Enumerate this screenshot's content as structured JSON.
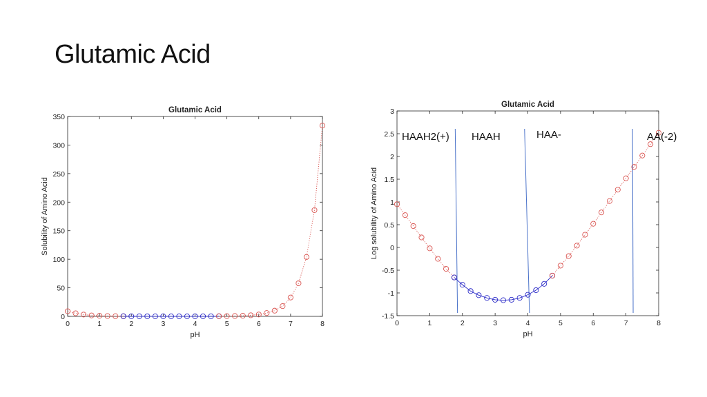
{
  "slide": {
    "title": "Glutamic Acid"
  },
  "colors": {
    "acid_side": "#d9534f",
    "buffer_region": "#2b2bc8",
    "species_line": "#4a72c9"
  },
  "chart_data": [
    {
      "type": "scatter",
      "title": "Glutamic Acid",
      "xlabel": "pH",
      "ylabel": "Solubility of Amino Acid",
      "xlim": [
        0,
        8
      ],
      "ylim": [
        0,
        350
      ],
      "xticks": [
        "0",
        "1",
        "2",
        "3",
        "4",
        "5",
        "6",
        "7",
        "8"
      ],
      "yticks": [
        "0",
        "50",
        "100",
        "150",
        "200",
        "250",
        "300",
        "350"
      ],
      "grid": false,
      "series": [
        {
          "color": "#d9534f",
          "line_style": "dotted",
          "x": [
            0,
            0.25,
            0.5,
            0.75,
            1,
            1.25,
            1.5,
            1.75
          ],
          "y": [
            9,
            5.4,
            3.1,
            1.6,
            1.0,
            0.6,
            0.35,
            0.2
          ]
        },
        {
          "color": "#2b2bc8",
          "line_style": "solid",
          "x": [
            1.75,
            2,
            2.25,
            2.5,
            2.75,
            3,
            3.25,
            3.5,
            3.75,
            4,
            4.25,
            4.5,
            4.75
          ],
          "y": [
            0.22,
            0.15,
            0.11,
            0.09,
            0.08,
            0.07,
            0.07,
            0.07,
            0.08,
            0.09,
            0.12,
            0.16,
            0.24
          ]
        },
        {
          "color": "#d9534f",
          "line_style": "dotted",
          "x": [
            4.75,
            5,
            5.25,
            5.5,
            5.75,
            6,
            6.25,
            6.5,
            6.75,
            7,
            7.25,
            7.5,
            7.75,
            8
          ],
          "y": [
            0.24,
            0.4,
            0.65,
            1.1,
            1.9,
            3.3,
            5.8,
            10,
            18,
            33,
            58,
            104,
            186,
            334
          ]
        }
      ]
    },
    {
      "type": "scatter",
      "title": "Glutamic Acid",
      "xlabel": "pH",
      "ylabel": "Log solubility of Amino Acid",
      "xlim": [
        0,
        8
      ],
      "ylim": [
        -1.5,
        3
      ],
      "xticks": [
        "0",
        "1",
        "2",
        "3",
        "4",
        "5",
        "6",
        "7",
        "8"
      ],
      "yticks": [
        "-1.5",
        "-1",
        "-0.5",
        "0",
        "0.5",
        "1",
        "1.5",
        "2",
        "2.5",
        "3"
      ],
      "grid": false,
      "series": [
        {
          "color": "#d9534f",
          "line_style": "dotted",
          "x": [
            0,
            0.25,
            0.5,
            0.75,
            1,
            1.25,
            1.5,
            1.75
          ],
          "y": [
            0.95,
            0.71,
            0.47,
            0.22,
            -0.02,
            -0.25,
            -0.47,
            -0.66
          ]
        },
        {
          "color": "#2b2bc8",
          "line_style": "solid",
          "x": [
            1.75,
            2,
            2.25,
            2.5,
            2.75,
            3,
            3.25,
            3.5,
            3.75,
            4,
            4.25,
            4.5,
            4.75
          ],
          "y": [
            -0.66,
            -0.82,
            -0.96,
            -1.05,
            -1.11,
            -1.15,
            -1.16,
            -1.15,
            -1.11,
            -1.04,
            -0.94,
            -0.8,
            -0.62
          ]
        },
        {
          "color": "#d9534f",
          "line_style": "dotted",
          "x": [
            4.75,
            5,
            5.25,
            5.5,
            5.75,
            6,
            6.25,
            6.5,
            6.75,
            7,
            7.25,
            7.5,
            7.75,
            8
          ],
          "y": [
            -0.62,
            -0.4,
            -0.19,
            0.04,
            0.28,
            0.52,
            0.77,
            1.02,
            1.27,
            1.52,
            1.77,
            2.02,
            2.27,
            2.52
          ]
        }
      ],
      "vlines": [
        {
          "x_top": 1.78,
          "x_bottom": 1.85
        },
        {
          "x_top": 3.9,
          "x_bottom": 4.05
        },
        {
          "x_top": 7.2,
          "x_bottom": 7.22
        }
      ],
      "annotations": [
        {
          "text": "HAAH2(+)"
        },
        {
          "text": "HAAH"
        },
        {
          "text": "HAA-"
        },
        {
          "text": "AA(-2)"
        }
      ]
    }
  ]
}
